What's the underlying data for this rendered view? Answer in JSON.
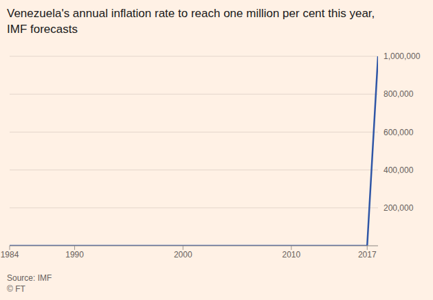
{
  "chart_data": {
    "type": "line",
    "title": "Venezuela's annual inflation rate to reach one million per cent this year, IMF forecasts",
    "x": [
      1984,
      1985,
      1986,
      1987,
      1988,
      1989,
      1990,
      1991,
      1992,
      1993,
      1994,
      1995,
      1996,
      1997,
      1998,
      1999,
      2000,
      2001,
      2002,
      2003,
      2004,
      2005,
      2006,
      2007,
      2008,
      2009,
      2010,
      2011,
      2012,
      2013,
      2014,
      2015,
      2016,
      2017,
      2018
    ],
    "values": [
      12,
      11,
      11,
      28,
      29,
      84,
      41,
      34,
      31,
      38,
      61,
      60,
      100,
      50,
      36,
      24,
      16,
      13,
      22,
      31,
      22,
      16,
      14,
      19,
      31,
      27,
      28,
      26,
      21,
      43,
      57,
      122,
      254,
      1087,
      1000000
    ],
    "color": "#2f56a6",
    "xlim": [
      1984,
      2018
    ],
    "xticks": [
      1984,
      1990,
      2000,
      2010,
      2017
    ],
    "ylim": [
      0,
      1000000
    ],
    "yticks": [
      {
        "value": 200000,
        "label": "200,000"
      },
      {
        "value": 400000,
        "label": "400,000"
      },
      {
        "value": 600000,
        "label": "600,000"
      },
      {
        "value": 800000,
        "label": "800,000"
      },
      {
        "value": 1000000,
        "label": "1,000,000"
      }
    ],
    "grid": true,
    "source": "Source: IMF",
    "copyright": "© FT"
  }
}
